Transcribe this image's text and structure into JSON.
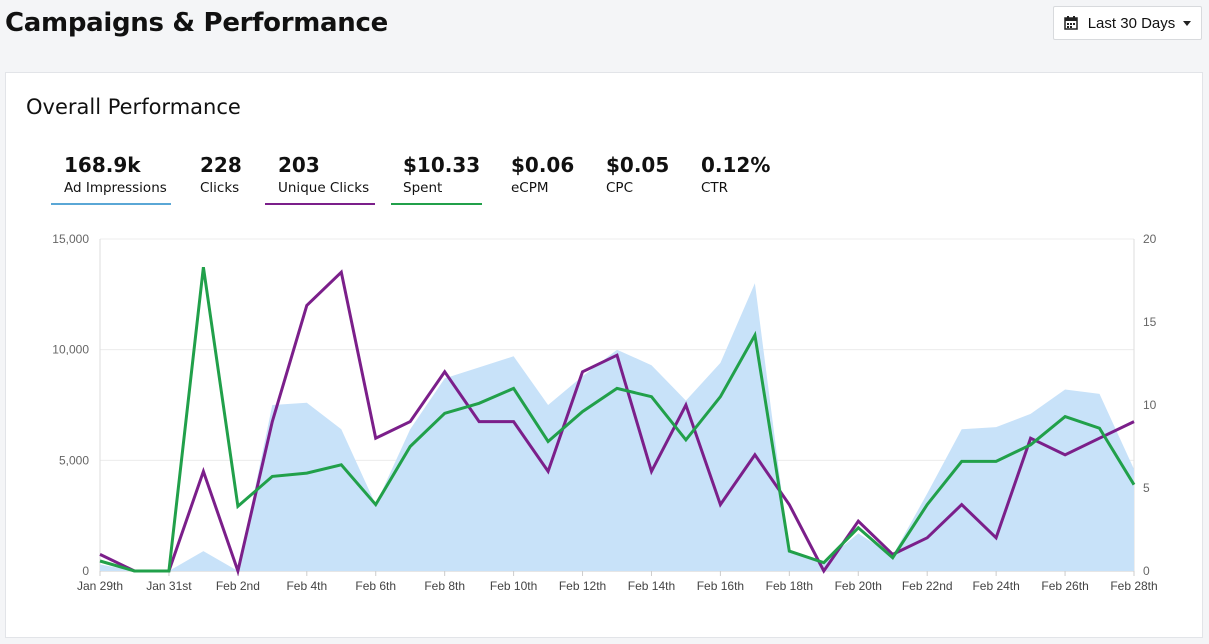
{
  "header": {
    "title": "Campaigns & Performance",
    "date_range_label": "Last 30 Days"
  },
  "card": {
    "title": "Overall Performance"
  },
  "metrics": [
    {
      "value": "168.9k",
      "label": "Ad Impressions",
      "color": "#5aa7d6",
      "active": true
    },
    {
      "value": "228",
      "label": "Clicks",
      "active": false
    },
    {
      "value": "203",
      "label": "Unique Clicks",
      "color": "#7b1f8a",
      "active": true
    },
    {
      "value": "$10.33",
      "label": "Spent",
      "color": "#21a04a",
      "active": true
    },
    {
      "value": "$0.06",
      "label": "eCPM",
      "active": false
    },
    {
      "value": "$0.05",
      "label": "CPC",
      "active": false
    },
    {
      "value": "0.12%",
      "label": "CTR",
      "active": false
    }
  ],
  "chart_data": {
    "type": "line",
    "x": [
      "Jan 29th",
      "Jan 30th",
      "Jan 31st",
      "Feb 1st",
      "Feb 2nd",
      "Feb 3rd",
      "Feb 4th",
      "Feb 5th",
      "Feb 6th",
      "Feb 7th",
      "Feb 8th",
      "Feb 9th",
      "Feb 10th",
      "Feb 11th",
      "Feb 12th",
      "Feb 13th",
      "Feb 14th",
      "Feb 15th",
      "Feb 16th",
      "Feb 17th",
      "Feb 18th",
      "Feb 19th",
      "Feb 20th",
      "Feb 21st",
      "Feb 22nd",
      "Feb 23rd",
      "Feb 24th",
      "Feb 25th",
      "Feb 26th",
      "Feb 27th",
      "Feb 28th"
    ],
    "x_tick_labels": [
      "Jan 29th",
      "Jan 31st",
      "Feb 2nd",
      "Feb 4th",
      "Feb 6th",
      "Feb 8th",
      "Feb 10th",
      "Feb 12th",
      "Feb 14th",
      "Feb 16th",
      "Feb 18th",
      "Feb 20th",
      "Feb 22nd",
      "Feb 24th",
      "Feb 26th",
      "Feb 28th"
    ],
    "y_left": {
      "ticks": [
        "15,000",
        "10,000",
        "5,000",
        "0"
      ],
      "ylim": [
        0,
        15000
      ]
    },
    "y_right": {
      "ticks": [
        "20",
        "15",
        "10",
        "5",
        "0"
      ],
      "ylim": [
        0,
        20
      ]
    },
    "series": [
      {
        "name": "Ad Impressions",
        "kind": "area",
        "axis": "left",
        "color": "#c8e2f9",
        "values": [
          300,
          0,
          0,
          900,
          0,
          7500,
          7600,
          6400,
          3000,
          6400,
          8700,
          9200,
          9700,
          7500,
          8800,
          10000,
          9300,
          7700,
          9400,
          13000,
          900,
          400,
          1700,
          700,
          3500,
          6400,
          6500,
          7100,
          8200,
          8000,
          4600
        ]
      },
      {
        "name": "Unique Clicks",
        "kind": "line",
        "axis": "right",
        "color": "#7b1f8a",
        "values": [
          1,
          0,
          0,
          6,
          0,
          9,
          16,
          18,
          8,
          9,
          12,
          9,
          9,
          6,
          12,
          13,
          6,
          10,
          4,
          7,
          4,
          0,
          3,
          1,
          2,
          4,
          2,
          8,
          7,
          8,
          9
        ]
      },
      {
        "name": "Spent",
        "kind": "line",
        "axis": "right",
        "color": "#21a04a",
        "values": [
          0.6,
          0,
          0,
          18.3,
          3.9,
          5.7,
          5.9,
          6.4,
          4.0,
          7.5,
          9.5,
          10.1,
          11.0,
          7.8,
          9.6,
          11.0,
          10.5,
          7.9,
          10.5,
          14.2,
          1.2,
          0.5,
          2.6,
          0.8,
          4.0,
          6.6,
          6.6,
          7.6,
          9.3,
          8.6,
          5.2
        ]
      }
    ]
  }
}
